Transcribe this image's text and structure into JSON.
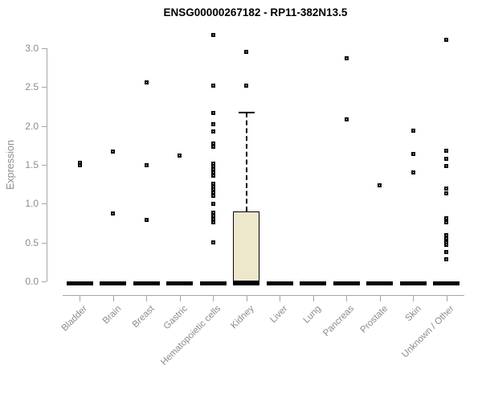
{
  "header": {
    "title": "ENSG00000267182 - RP11-382N13.5"
  },
  "colors": {
    "box_fill": "#EDE7CC",
    "box_border": "#000000",
    "marker": "#000000",
    "axis": "#A6A6A6",
    "tick_label": "#8C8C8C",
    "zero_bar": "#000000",
    "background": "#FFFFFF"
  },
  "chart_data": {
    "type": "boxplot",
    "title": "ENSG00000267182 - RP11-382N13.5",
    "xlabel": "",
    "ylabel": "Expression",
    "ylim": [
      0.0,
      3.0
    ],
    "yticks": [
      "0.0",
      "0.5",
      "1.0",
      "1.5",
      "2.0",
      "2.5",
      "3.0"
    ],
    "grid": false,
    "legend": null,
    "categories": [
      "Bladder",
      "Brain",
      "Breast",
      "Gastric",
      "Hematopoietic cells",
      "Kidney",
      "Liver",
      "Lung",
      "Pancreas",
      "Prostate",
      "Skin",
      "Unknown / Other"
    ],
    "series": [
      {
        "category": "Bladder",
        "median": 0,
        "points": [
          1.53,
          1.49
        ]
      },
      {
        "category": "Brain",
        "median": 0,
        "points": [
          1.67,
          0.87
        ]
      },
      {
        "category": "Breast",
        "median": 0,
        "points": [
          2.56,
          1.49,
          0.79
        ]
      },
      {
        "category": "Gastric",
        "median": 0,
        "points": [
          1.62
        ]
      },
      {
        "category": "Hematopoietic cells",
        "median": 0,
        "points": [
          3.17,
          2.52,
          2.17,
          2.02,
          1.93,
          1.77,
          1.73,
          1.52,
          1.48,
          1.44,
          1.4,
          1.36,
          1.26,
          1.22,
          1.18,
          1.14,
          1.1,
          1.0,
          0.88,
          0.84,
          0.8,
          0.76,
          0.5
        ]
      },
      {
        "category": "Kidney",
        "median": 0,
        "box": {
          "q1": 0.0,
          "q3": 0.9,
          "whisker_high": 2.17
        },
        "points": [
          2.95,
          2.52
        ]
      },
      {
        "category": "Liver",
        "median": 0,
        "points": []
      },
      {
        "category": "Lung",
        "median": 0,
        "points": []
      },
      {
        "category": "Pancreas",
        "median": 0,
        "points": [
          2.87,
          2.08
        ]
      },
      {
        "category": "Prostate",
        "median": 0,
        "points": [
          1.24
        ]
      },
      {
        "category": "Skin",
        "median": 0,
        "points": [
          1.94,
          1.64,
          1.4
        ]
      },
      {
        "category": "Unknown / Other",
        "median": 0,
        "points": [
          3.11,
          1.68,
          1.58,
          1.48,
          1.19,
          1.13,
          0.81,
          0.76,
          0.59,
          0.55,
          0.5,
          0.47,
          0.38,
          0.28
        ]
      }
    ]
  }
}
